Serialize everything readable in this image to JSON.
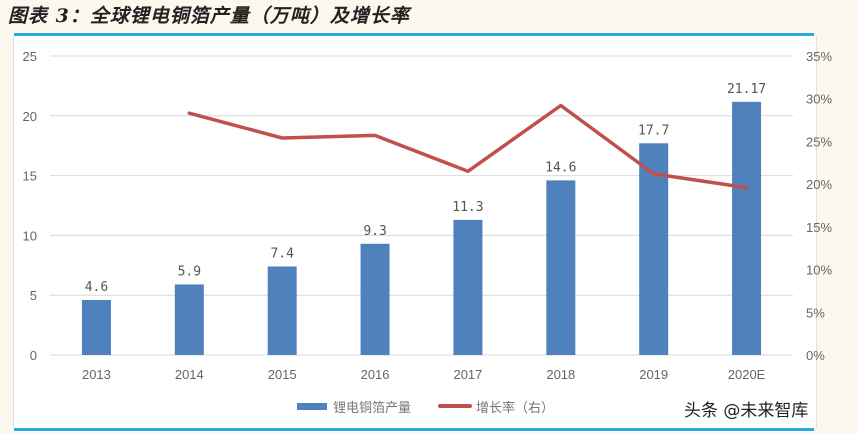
{
  "header": {
    "title": "图表 3：全球锂电铜箔产量（万吨）及增长率"
  },
  "watermark": "头条 @未来智库",
  "colors": {
    "bar": "#4f81bd",
    "line": "#c0504d",
    "accent_rule": "#29a7df",
    "grid": "#d9d9d9"
  },
  "chart_data": {
    "type": "bar+line",
    "title": "全球锂电铜箔产量（万吨）及增长率",
    "categories": [
      "2013",
      "2014",
      "2015",
      "2016",
      "2017",
      "2018",
      "2019",
      "2020E"
    ],
    "series": [
      {
        "name": "锂电铜箔产量",
        "type": "bar",
        "axis": "left",
        "values": [
          4.6,
          5.9,
          7.4,
          9.3,
          11.3,
          14.6,
          17.7,
          21.17
        ],
        "labels": [
          "4.6",
          "5.9",
          "7.4",
          "9.3",
          "11.3",
          "14.6",
          "17.7",
          "21.17"
        ]
      },
      {
        "name": "增长率（右）",
        "type": "line",
        "axis": "right",
        "values": [
          null,
          28.3,
          25.4,
          25.7,
          21.5,
          29.2,
          21.2,
          19.6
        ]
      }
    ],
    "y_left": {
      "min": 0,
      "max": 25,
      "ticks": [
        "0",
        "5",
        "10",
        "15",
        "20",
        "25"
      ]
    },
    "y_right": {
      "min": 0,
      "max": 35,
      "unit": "%",
      "ticks": [
        "0%",
        "5%",
        "10%",
        "15%",
        "20%",
        "25%",
        "30%",
        "35%"
      ]
    },
    "xlabel": "",
    "ylabel": "",
    "grid": true,
    "legend_position": "bottom",
    "legend": [
      "锂电铜箔产量",
      "增长率（右）"
    ]
  }
}
